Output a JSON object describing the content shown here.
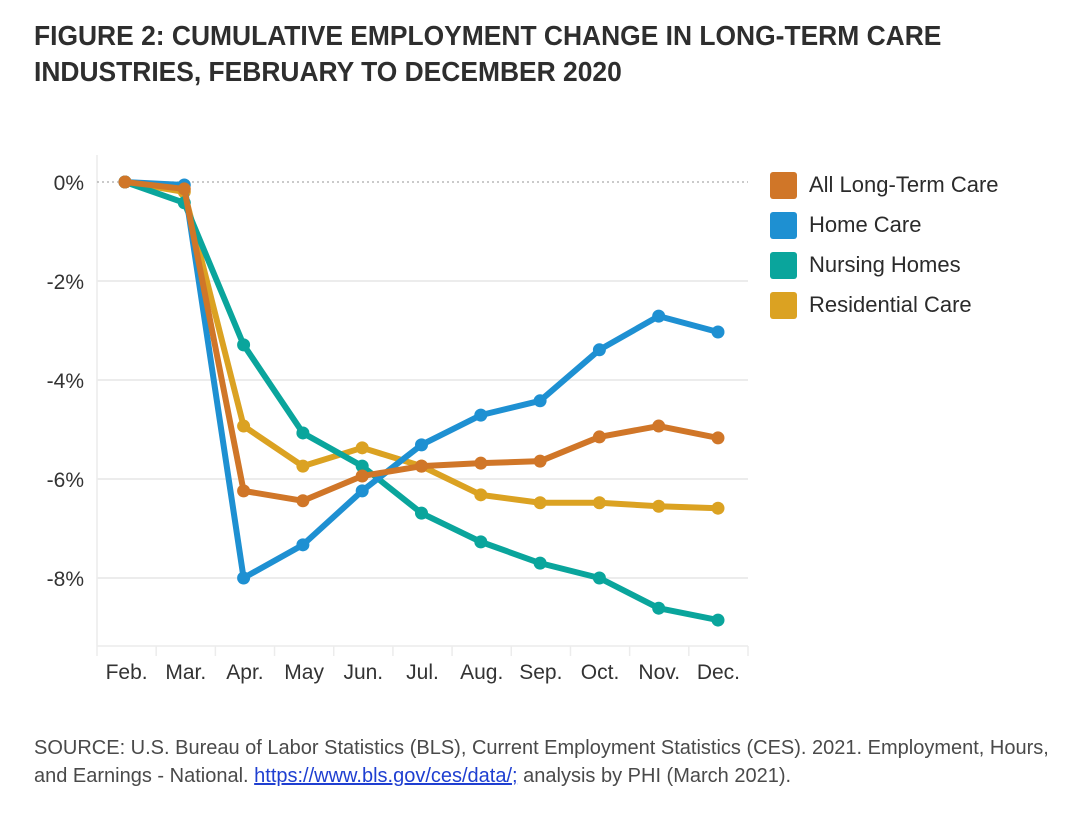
{
  "title_line1": "FIGURE 2: CUMULATIVE EMPLOYMENT CHANGE IN LONG-TERM CARE",
  "title_line2": "INDUSTRIES, FEBRUARY TO DECEMBER 2020",
  "source": {
    "prefix": "SOURCE: U.S. Bureau of Labor Statistics (BLS), Current Employment Statistics (CES). 2021. Employment, Hours, and Earnings - National. ",
    "link_text": "https://www.bls.gov/ces/data/;",
    "suffix": " analysis by PHI (March 2021)."
  },
  "chart_data": {
    "type": "line",
    "title": "Figure 2: Cumulative Employment Change in Long-Term Care Industries, February to December 2020",
    "xlabel": "",
    "ylabel": "",
    "categories": [
      "Feb.",
      "Mar.",
      "Apr.",
      "May",
      "Jun.",
      "Jul.",
      "Aug.",
      "Sep.",
      "Oct.",
      "Nov.",
      "Dec."
    ],
    "ylim": [
      -9.3,
      0.55
    ],
    "yticks": [
      0,
      -2,
      -4,
      -6,
      -8
    ],
    "ytick_labels": [
      "0%",
      "-2%",
      "-4%",
      "-6%",
      "-8%"
    ],
    "zero_line": "dotted",
    "grid": true,
    "legend_position": "right",
    "series": [
      {
        "name": "All Long-Term Care",
        "color": "#D07628",
        "values": [
          0,
          -0.14,
          -6.24,
          -6.44,
          -5.94,
          -5.74,
          -5.68,
          -5.64,
          -5.15,
          -4.93,
          -5.17
        ]
      },
      {
        "name": "Home Care",
        "color": "#1E90D2",
        "values": [
          0,
          -0.06,
          -8.0,
          -7.33,
          -6.24,
          -5.31,
          -4.71,
          -4.42,
          -3.39,
          -2.71,
          -3.03
        ]
      },
      {
        "name": "Nursing Homes",
        "color": "#0AA59C",
        "values": [
          0,
          -0.42,
          -3.29,
          -5.07,
          -5.74,
          -6.69,
          -7.27,
          -7.7,
          -8.0,
          -8.61,
          -8.85
        ]
      },
      {
        "name": "Residential Care",
        "color": "#DBA222",
        "values": [
          0,
          -0.2,
          -4.93,
          -5.74,
          -5.37,
          -5.74,
          -6.32,
          -6.48,
          -6.48,
          -6.55,
          -6.59
        ]
      }
    ],
    "draw_order": [
      "Residential Care",
      "Nursing Homes",
      "Home Care",
      "All Long-Term Care"
    ]
  }
}
